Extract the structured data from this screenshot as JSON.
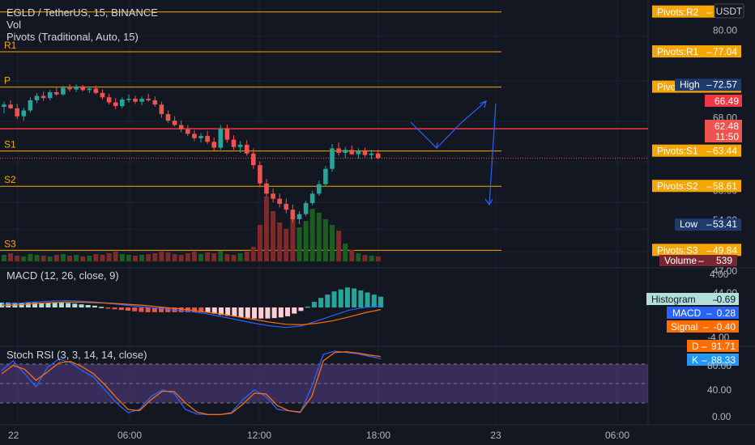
{
  "header": {
    "title": "EGLD / TetherUS, 15, BINANCE",
    "vol": "Vol",
    "pivots": "Pivots (Traditional, Auto, 15)",
    "currency": "USDT"
  },
  "chart_data": {
    "type": "candlestick",
    "symbol": "EGLD / TetherUS",
    "interval": "15",
    "exchange": "BINANCE",
    "price_axis": {
      "ticks": [
        80.0,
        68.0,
        58.0,
        54.0,
        47.0,
        44.0
      ]
    },
    "pivots": [
      {
        "name": "R2",
        "short": "R2",
        "value": 82.5,
        "label": "Pivots:R2",
        "text": ""
      },
      {
        "name": "R1",
        "short": "R1",
        "value": 77.04,
        "label": "Pivots:R1",
        "text": "77.04"
      },
      {
        "name": "P",
        "short": "P",
        "value": 72.21,
        "label": "Pivots:P",
        "text": "72.21"
      },
      {
        "name": "S1",
        "short": "S1",
        "value": 63.44,
        "label": "Pivots:S1",
        "text": "63.44"
      },
      {
        "name": "S2",
        "short": "S2",
        "value": 58.61,
        "label": "Pivots:S2",
        "text": "58.61"
      },
      {
        "name": "S3",
        "short": "S3",
        "value": 49.84,
        "label": "Pivots:S3",
        "text": "49.84"
      }
    ],
    "markers": [
      {
        "name": "High",
        "value": 72.57
      },
      {
        "name": "Low",
        "value": 53.41
      }
    ],
    "current_price": "62.48",
    "countdown": "11:50",
    "red_line_value": "66.49",
    "candles": [
      [
        69.5,
        70.2,
        68.6,
        69.8
      ],
      [
        69.8,
        70.4,
        69.2,
        69.3
      ],
      [
        69.3,
        69.9,
        67.8,
        68.2
      ],
      [
        68.2,
        69.4,
        67.6,
        69.0
      ],
      [
        69.0,
        70.8,
        68.7,
        70.4
      ],
      [
        70.4,
        71.4,
        70.0,
        71.0
      ],
      [
        71.0,
        71.6,
        70.3,
        70.7
      ],
      [
        70.7,
        71.8,
        70.4,
        71.5
      ],
      [
        71.5,
        72.1,
        71.0,
        71.2
      ],
      [
        71.2,
        72.4,
        71.0,
        72.1
      ],
      [
        72.1,
        72.6,
        71.6,
        71.9
      ],
      [
        71.9,
        72.57,
        71.5,
        72.3
      ],
      [
        72.3,
        72.5,
        71.6,
        71.8
      ],
      [
        71.8,
        72.3,
        71.4,
        72.0
      ],
      [
        72.0,
        72.4,
        71.2,
        71.4
      ],
      [
        71.4,
        71.9,
        70.5,
        70.8
      ],
      [
        70.8,
        71.3,
        69.8,
        70.1
      ],
      [
        70.1,
        70.7,
        69.2,
        69.6
      ],
      [
        69.6,
        70.8,
        69.3,
        70.5
      ],
      [
        70.5,
        71.2,
        70.1,
        70.6
      ],
      [
        70.6,
        71.0,
        69.9,
        70.2
      ],
      [
        70.2,
        70.9,
        69.7,
        70.6
      ],
      [
        70.6,
        71.3,
        70.2,
        70.4
      ],
      [
        70.4,
        70.9,
        69.5,
        69.8
      ],
      [
        69.8,
        70.2,
        68.0,
        68.5
      ],
      [
        68.5,
        69.0,
        67.3,
        67.6
      ],
      [
        67.6,
        68.2,
        66.8,
        67.0
      ],
      [
        67.0,
        67.6,
        66.0,
        66.4
      ],
      [
        66.4,
        67.0,
        65.5,
        65.8
      ],
      [
        65.8,
        66.3,
        64.8,
        65.2
      ],
      [
        65.2,
        65.9,
        64.6,
        65.5
      ],
      [
        65.5,
        66.2,
        64.4,
        64.7
      ],
      [
        64.7,
        65.3,
        63.5,
        63.9
      ],
      [
        63.9,
        67.0,
        63.6,
        66.5
      ],
      [
        66.5,
        67.1,
        64.6,
        65.0
      ],
      [
        65.0,
        65.6,
        63.6,
        64.0
      ],
      [
        64.0,
        64.8,
        63.2,
        64.3
      ],
      [
        64.3,
        64.9,
        62.8,
        63.1
      ],
      [
        63.1,
        63.8,
        61.0,
        61.5
      ],
      [
        61.5,
        62.0,
        58.5,
        59.0
      ],
      [
        59.0,
        59.6,
        57.2,
        57.6
      ],
      [
        57.6,
        58.3,
        56.4,
        56.9
      ],
      [
        56.9,
        57.6,
        55.7,
        56.2
      ],
      [
        56.2,
        56.9,
        54.9,
        55.4
      ],
      [
        55.4,
        56.1,
        53.6,
        54.1
      ],
      [
        54.1,
        55.2,
        53.41,
        54.8
      ],
      [
        54.8,
        56.6,
        54.5,
        56.3
      ],
      [
        56.3,
        58.0,
        56.0,
        57.6
      ],
      [
        57.6,
        59.4,
        57.3,
        58.9
      ],
      [
        58.9,
        61.4,
        58.6,
        61.0
      ],
      [
        61.0,
        64.4,
        60.6,
        63.8
      ],
      [
        63.8,
        64.6,
        62.8,
        63.2
      ],
      [
        63.2,
        64.0,
        62.5,
        63.6
      ],
      [
        63.6,
        64.2,
        62.9,
        63.0
      ],
      [
        63.0,
        63.8,
        62.4,
        63.4
      ],
      [
        63.4,
        63.9,
        62.6,
        62.9
      ],
      [
        62.9,
        63.6,
        62.3,
        63.1
      ],
      [
        63.1,
        63.6,
        62.3,
        62.48
      ]
    ],
    "volume": [
      8,
      10,
      7,
      6,
      9,
      8,
      7,
      6,
      8,
      9,
      7,
      8,
      6,
      7,
      9,
      8,
      10,
      12,
      9,
      8,
      7,
      8,
      9,
      10,
      12,
      11,
      9,
      8,
      10,
      12,
      9,
      11,
      10,
      13,
      9,
      8,
      10,
      12,
      18,
      45,
      80,
      62,
      48,
      40,
      55,
      42,
      50,
      65,
      60,
      52,
      45,
      38,
      22,
      14,
      10,
      8,
      7,
      6
    ],
    "indicators": {
      "volume_label": {
        "name": "Volume",
        "value": "539"
      },
      "macd": {
        "title": "MACD (12, 26, close, 9)",
        "axis_ticks": [
          "4.00",
          "-4.00"
        ],
        "histogram": {
          "label": "Histogram",
          "value": "0.69"
        },
        "macd": {
          "label": "MACD",
          "value": "0.28"
        },
        "signal": {
          "label": "Signal",
          "value": "-0.40"
        },
        "macd_series": [
          0.6,
          0.8,
          1.0,
          1.2,
          1.3,
          1.2,
          1.0,
          0.7,
          0.4,
          0.1,
          -0.2,
          -0.5,
          -0.8,
          -1.2,
          -1.8,
          -2.4,
          -3.0,
          -3.5,
          -3.8,
          -3.5,
          -2.5,
          -1.5,
          -0.5,
          0.0,
          0.28
        ],
        "signal_series": [
          0.3,
          0.5,
          0.7,
          0.9,
          1.0,
          1.0,
          0.9,
          0.8,
          0.6,
          0.4,
          0.1,
          -0.2,
          -0.5,
          -0.9,
          -1.3,
          -1.8,
          -2.3,
          -2.8,
          -3.2,
          -3.3,
          -3.0,
          -2.5,
          -1.8,
          -1.0,
          -0.4
        ]
      },
      "stoch_rsi": {
        "title": "Stoch RSI (3, 3, 14, 14, close)",
        "axis_ticks": [
          "80.00",
          "40.00",
          "0.00"
        ],
        "band": [
          20,
          80
        ],
        "d": {
          "label": "D",
          "value": "91.71"
        },
        "k": {
          "label": "K",
          "value": "88.33"
        },
        "k_series": [
          70,
          85,
          65,
          45,
          75,
          88,
          82,
          70,
          60,
          40,
          20,
          5,
          10,
          30,
          40,
          35,
          10,
          3,
          2,
          2,
          5,
          25,
          40,
          30,
          10,
          8,
          5,
          45,
          95,
          100,
          98,
          96,
          92,
          88.33
        ],
        "d_series": [
          65,
          78,
          72,
          55,
          68,
          82,
          84,
          76,
          65,
          48,
          28,
          10,
          8,
          25,
          38,
          38,
          20,
          6,
          2,
          2,
          4,
          18,
          35,
          34,
          16,
          8,
          6,
          30,
          85,
          98,
          99,
          97,
          94,
          91.71
        ]
      }
    },
    "time_axis": [
      "22",
      "06:00",
      "12:00",
      "18:00",
      "23",
      "06:00"
    ]
  }
}
